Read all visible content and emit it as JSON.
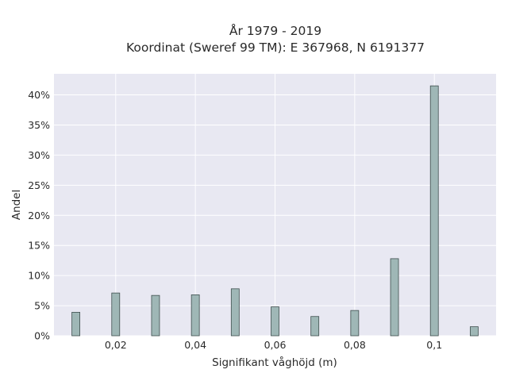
{
  "chart_data": {
    "type": "bar",
    "title": "År 1979 - 2019",
    "subtitle": "Koordinat (Sweref 99 TM): E 367968, N 6191377",
    "xlabel": "Signifikant våghöjd (m)",
    "ylabel": "Andel",
    "x": [
      0.01,
      0.02,
      0.03,
      0.04,
      0.05,
      0.06,
      0.07,
      0.08,
      0.09,
      0.1,
      0.11
    ],
    "values": [
      3.9,
      7.1,
      6.7,
      6.8,
      7.8,
      4.8,
      3.2,
      4.2,
      12.8,
      41.5,
      1.5
    ],
    "xlim": [
      0.0045,
      0.1155
    ],
    "ylim": [
      0,
      43.5
    ],
    "x_ticks": [
      0.02,
      0.04,
      0.06,
      0.08,
      0.1
    ],
    "x_tick_labels": [
      "0,02",
      "0,04",
      "0,06",
      "0,08",
      "0,1"
    ],
    "y_ticks": [
      0,
      5,
      10,
      15,
      20,
      25,
      30,
      35,
      40
    ],
    "y_tick_labels": [
      "0%",
      "5%",
      "10%",
      "15%",
      "20%",
      "25%",
      "30%",
      "35%",
      "40%"
    ],
    "grid": true,
    "colors": {
      "bar_fill": "#9fb7b6",
      "bar_stroke": "#3f4f4e",
      "plot_bg": "#e8e8f2",
      "grid": "#ffffff"
    }
  }
}
